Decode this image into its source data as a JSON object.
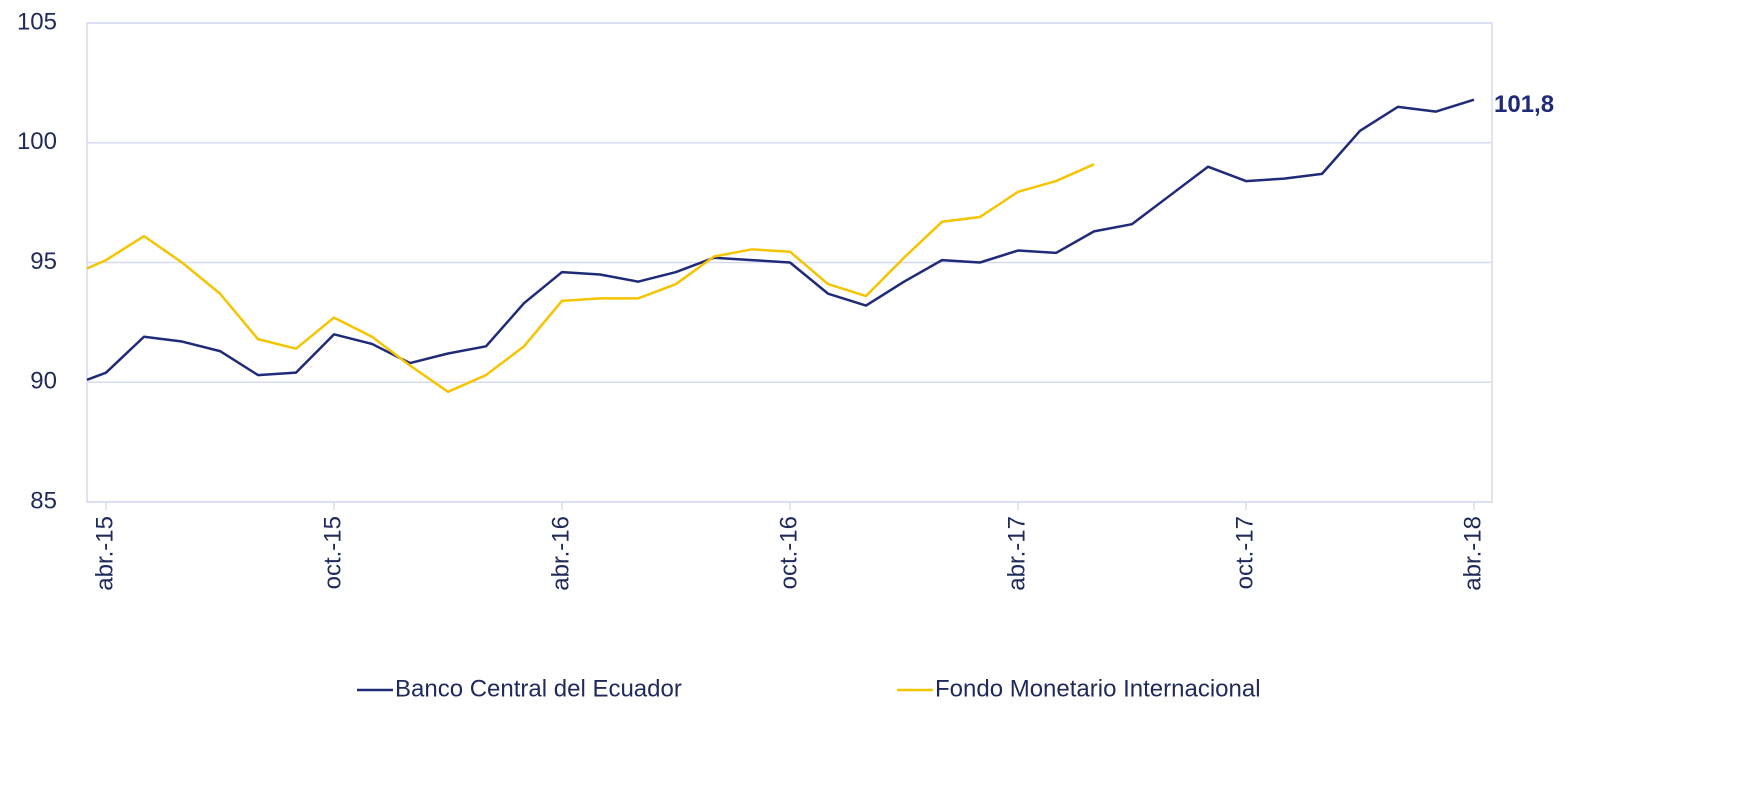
{
  "chart_data": {
    "type": "line",
    "categories": [
      null,
      "abr.-15",
      null,
      null,
      null,
      null,
      null,
      "oct.-15",
      null,
      null,
      null,
      null,
      null,
      "abr.-16",
      null,
      null,
      null,
      null,
      null,
      "oct.-16",
      null,
      null,
      null,
      null,
      null,
      "abr.-17",
      null,
      null,
      null,
      null,
      null,
      "oct.-17",
      null,
      null,
      null,
      null,
      null,
      "abr.-18"
    ],
    "series": [
      {
        "name": "Banco Central del Ecuador",
        "color": "#1f2a78",
        "values": [
          90.1,
          90.4,
          91.9,
          91.7,
          91.3,
          90.3,
          90.4,
          92.0,
          91.6,
          90.8,
          91.2,
          91.5,
          93.3,
          94.6,
          94.5,
          94.2,
          94.6,
          95.2,
          95.1,
          95.0,
          93.7,
          93.2,
          94.2,
          95.1,
          95.0,
          95.5,
          95.4,
          96.3,
          96.6,
          97.8,
          99.0,
          98.4,
          98.5,
          98.7,
          100.5,
          101.5,
          101.3,
          101.8
        ],
        "value_labels": [
          null,
          null,
          null,
          null,
          null,
          null,
          null,
          null,
          null,
          null,
          null,
          null,
          null,
          null,
          null,
          null,
          null,
          null,
          null,
          null,
          null,
          null,
          null,
          null,
          null,
          null,
          null,
          null,
          null,
          null,
          null,
          null,
          null,
          null,
          null,
          null,
          null,
          "101,8"
        ]
      },
      {
        "name": "Fondo Monetario Internacional",
        "color": "#f5c400",
        "values": [
          94.75,
          95.1,
          96.1,
          95.0,
          93.7,
          91.8,
          91.4,
          92.7,
          91.9,
          90.7,
          89.6,
          90.3,
          91.5,
          93.4,
          93.5,
          93.5,
          94.1,
          95.25,
          95.55,
          95.45,
          94.1,
          93.6,
          95.2,
          96.7,
          96.9,
          97.95,
          98.4,
          99.1,
          null,
          null,
          null,
          null,
          null,
          null,
          null,
          null,
          null,
          null
        ]
      }
    ],
    "ylim": [
      85,
      105
    ],
    "yticks": [
      85,
      90,
      95,
      100,
      105
    ],
    "grid": true
  }
}
